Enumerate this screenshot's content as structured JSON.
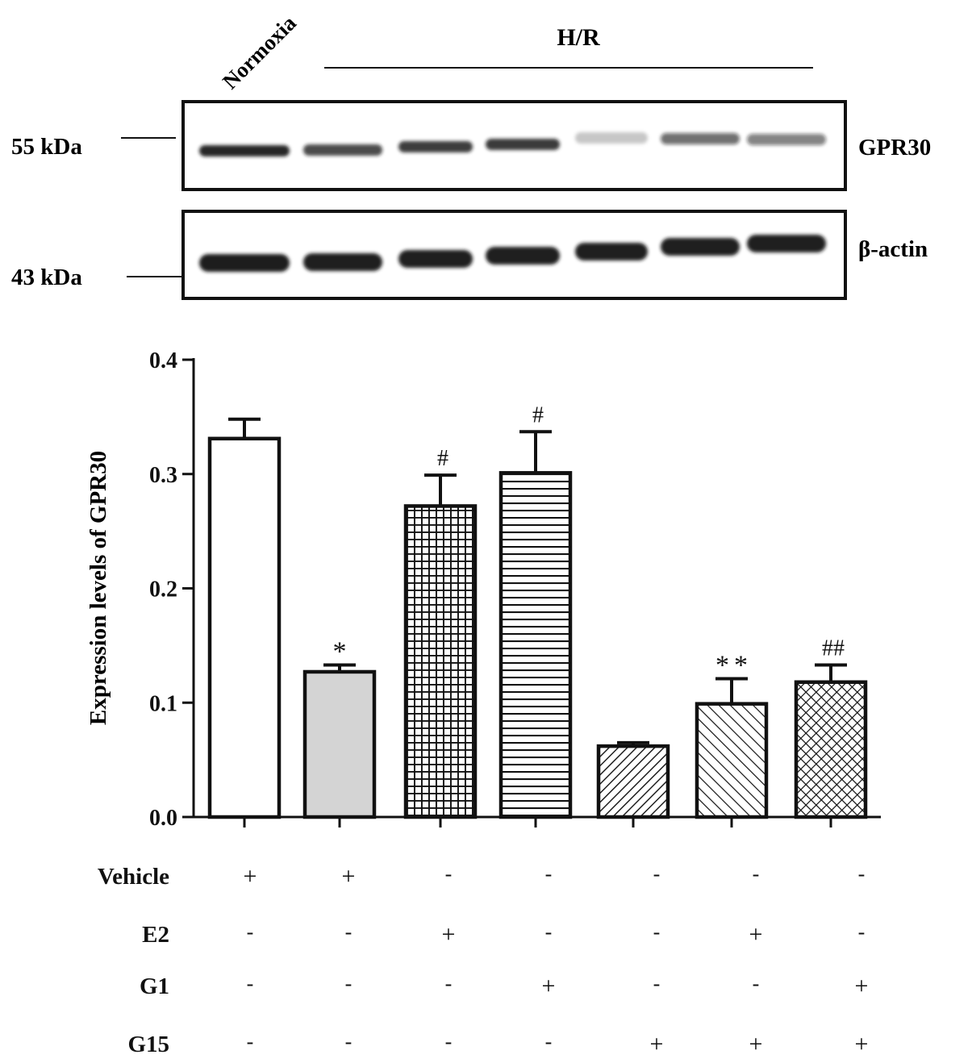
{
  "blot": {
    "lane_labels": {
      "normoxia": "Normoxia",
      "hr": "H/R"
    },
    "markers": [
      {
        "label": "55 kDa"
      },
      {
        "label": "43 kDa"
      }
    ],
    "panels": [
      {
        "name": "GPR30",
        "label": "GPR30",
        "band_intensity": [
          0.93,
          0.78,
          0.84,
          0.85,
          0.22,
          0.6,
          0.52
        ]
      },
      {
        "name": "beta-actin",
        "label": "β-actin",
        "band_intensity": [
          0.97,
          0.96,
          0.96,
          0.96,
          0.96,
          0.96,
          0.96
        ]
      }
    ]
  },
  "chart_data": {
    "type": "bar",
    "ylabel": "Expression levels of GPR30",
    "ylim": [
      0.0,
      0.4
    ],
    "yticks": [
      "0.0",
      "0.1",
      "0.2",
      "0.3",
      "0.4"
    ],
    "grid": false,
    "values": [
      0.331,
      0.127,
      0.272,
      0.301,
      0.062,
      0.099,
      0.118
    ],
    "errors": [
      0.017,
      0.006,
      0.027,
      0.036,
      0.003,
      0.022,
      0.015
    ],
    "annotations": [
      "",
      "*",
      "#",
      "#",
      "",
      "**",
      "##"
    ],
    "fills": [
      "white",
      "gray",
      "grid",
      "hlines",
      "diag-dense",
      "diag",
      "crosshatch"
    ],
    "treatments": [
      {
        "label": "Vehicle",
        "signs": [
          "+",
          "+",
          "-",
          "-",
          "-",
          "-",
          "-"
        ]
      },
      {
        "label": "E2",
        "signs": [
          "-",
          "-",
          "+",
          "-",
          "-",
          "+",
          "-"
        ]
      },
      {
        "label": "G1",
        "signs": [
          "-",
          "-",
          "-",
          "+",
          "-",
          "-",
          "+"
        ]
      },
      {
        "label": "G15",
        "signs": [
          "-",
          "-",
          "-",
          "-",
          "+",
          "+",
          "+"
        ]
      }
    ]
  },
  "colors": {
    "ink": "#111111",
    "gray_fill": "#d4d4d4",
    "band": "#161616"
  }
}
